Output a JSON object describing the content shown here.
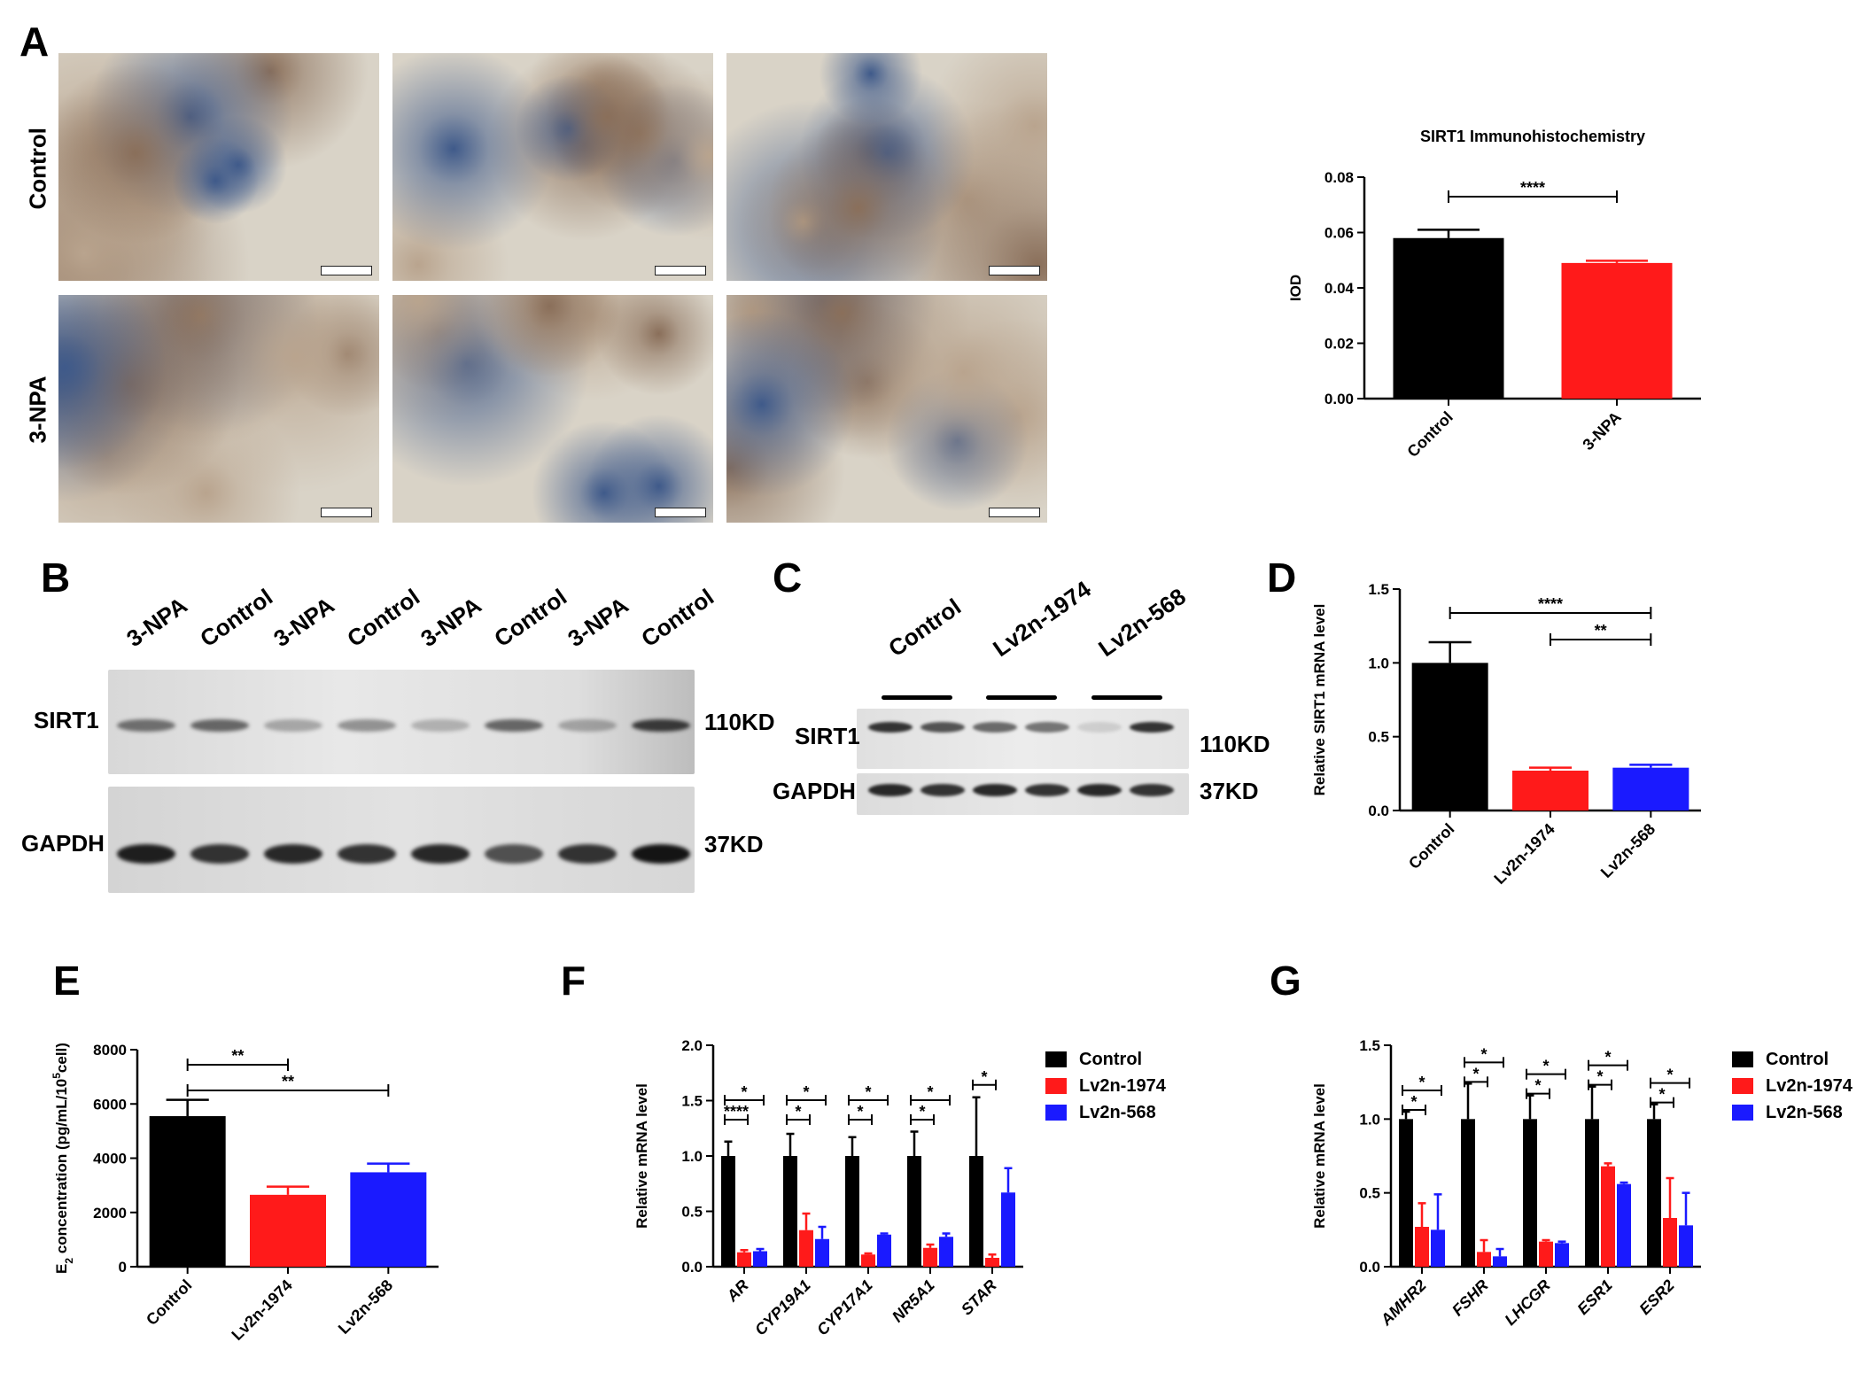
{
  "panels": {
    "A": "A",
    "B": "B",
    "C": "C",
    "D": "D",
    "E": "E",
    "F": "F",
    "G": "G"
  },
  "panel_a": {
    "row_labels": [
      "Control",
      "3-NPA"
    ],
    "tissue_colors": {
      "background": "#d9d3c7",
      "stain": "#8a6f5a",
      "nuclei": "#3f5a8a"
    }
  },
  "panel_b": {
    "lanes": [
      "3-NPA",
      "Control",
      "3-NPA",
      "Control",
      "3-NPA",
      "Control",
      "3-NPA",
      "Control"
    ],
    "row_labels": [
      "SIRT1",
      "GAPDH"
    ],
    "sizes": [
      "110KD",
      "37KD"
    ]
  },
  "panel_c": {
    "groups": [
      "Control",
      "Lv2n-1974",
      "Lv2n-568"
    ],
    "row_labels": [
      "SIRT1",
      "GAPDH"
    ],
    "sizes": [
      "110KD",
      "37KD"
    ]
  },
  "colors": {
    "control": "#000000",
    "lv1974": "#ff1a1a",
    "lv568": "#1a1aff"
  },
  "chart_data": [
    {
      "id": "A",
      "type": "bar",
      "title": "SIRT1 Immunohistochemistry",
      "categories": [
        "Control",
        "3-NPA"
      ],
      "values": [
        0.058,
        0.049
      ],
      "errors": [
        0.003,
        0.0008
      ],
      "ylabel": "IOD",
      "ylim": [
        0,
        0.08
      ],
      "yticks": [
        "0.00",
        "0.02",
        "0.04",
        "0.06",
        "0.08"
      ],
      "significance": [
        {
          "from": 0,
          "to": 1,
          "label": "****"
        }
      ]
    },
    {
      "id": "D",
      "type": "bar",
      "categories": [
        "Control",
        "Lv2n-1974",
        "Lv2n-568"
      ],
      "values": [
        1.0,
        0.27,
        0.29
      ],
      "errors": [
        0.14,
        0.02,
        0.02
      ],
      "ylabel": "Relative SIRT1 mRNA level",
      "ylim": [
        0,
        1.5
      ],
      "yticks": [
        "0.0",
        "0.5",
        "1.0",
        "1.5"
      ],
      "significance": [
        {
          "from": 0,
          "to": 2,
          "label": "****"
        },
        {
          "from": 1,
          "to": 2,
          "label": "**"
        }
      ]
    },
    {
      "id": "E",
      "type": "bar",
      "categories": [
        "Control",
        "Lv2n-1974",
        "Lv2n-568"
      ],
      "values": [
        5550,
        2650,
        3480
      ],
      "errors": [
        600,
        300,
        320
      ],
      "ylabel": "E2 concentration (pg/mL/105cell)",
      "ylim": [
        0,
        8000
      ],
      "yticks": [
        "0",
        "2000",
        "4000",
        "6000",
        "8000"
      ],
      "significance": [
        {
          "from": 0,
          "to": 1,
          "label": "**"
        },
        {
          "from": 0,
          "to": 2,
          "label": "**"
        }
      ]
    },
    {
      "id": "F",
      "type": "bar",
      "categories": [
        "AR",
        "CYP19A1",
        "CYP17A1",
        "NR5A1",
        "STAR"
      ],
      "series": [
        {
          "name": "Control",
          "values": [
            1.0,
            1.0,
            1.0,
            1.0,
            1.0
          ],
          "errors": [
            0.13,
            0.2,
            0.17,
            0.22,
            0.53
          ]
        },
        {
          "name": "Lv2n-1974",
          "values": [
            0.13,
            0.33,
            0.11,
            0.17,
            0.08
          ],
          "errors": [
            0.02,
            0.15,
            0.01,
            0.03,
            0.03
          ]
        },
        {
          "name": "Lv2n-568",
          "values": [
            0.14,
            0.25,
            0.29,
            0.27,
            0.67
          ],
          "errors": [
            0.02,
            0.11,
            0.01,
            0.03,
            0.22
          ]
        }
      ],
      "ylabel": "Relative mRNA level",
      "ylim": [
        0,
        2.0
      ],
      "yticks": [
        "0.0",
        "0.5",
        "1.0",
        "1.5",
        "2.0"
      ],
      "significance": [
        {
          "cat": 0,
          "from": 0,
          "to": 2,
          "label": "*"
        },
        {
          "cat": 0,
          "from": 0,
          "to": 1,
          "label": "****"
        },
        {
          "cat": 1,
          "from": 0,
          "to": 2,
          "label": "*"
        },
        {
          "cat": 1,
          "from": 0,
          "to": 1,
          "label": "*"
        },
        {
          "cat": 2,
          "from": 0,
          "to": 2,
          "label": "*"
        },
        {
          "cat": 2,
          "from": 0,
          "to": 1,
          "label": "*"
        },
        {
          "cat": 3,
          "from": 0,
          "to": 2,
          "label": "*"
        },
        {
          "cat": 3,
          "from": 0,
          "to": 1,
          "label": "*"
        },
        {
          "cat": 4,
          "from": 0,
          "to": 1,
          "label": "*"
        }
      ]
    },
    {
      "id": "G",
      "type": "bar",
      "categories": [
        "AMHR2",
        "FSHR",
        "LHCGR",
        "ESR1",
        "ESR2"
      ],
      "series": [
        {
          "name": "Control",
          "values": [
            1.0,
            1.0,
            1.0,
            1.0,
            1.0
          ],
          "errors": [
            0.05,
            0.24,
            0.16,
            0.22,
            0.1
          ]
        },
        {
          "name": "Lv2n-1974",
          "values": [
            0.27,
            0.1,
            0.17,
            0.68,
            0.33
          ],
          "errors": [
            0.16,
            0.08,
            0.01,
            0.02,
            0.27
          ]
        },
        {
          "name": "Lv2n-568",
          "values": [
            0.25,
            0.07,
            0.16,
            0.56,
            0.28
          ],
          "errors": [
            0.24,
            0.05,
            0.01,
            0.01,
            0.22
          ]
        }
      ],
      "ylabel": "Relative mRNA level",
      "ylim": [
        0,
        1.5
      ],
      "yticks": [
        "0.0",
        "0.5",
        "1.0",
        "1.5"
      ],
      "significance": [
        {
          "cat": 0,
          "from": 0,
          "to": 2,
          "label": "*"
        },
        {
          "cat": 0,
          "from": 0,
          "to": 1,
          "label": "*"
        },
        {
          "cat": 1,
          "from": 0,
          "to": 2,
          "label": "*"
        },
        {
          "cat": 1,
          "from": 0,
          "to": 1,
          "label": "*"
        },
        {
          "cat": 2,
          "from": 0,
          "to": 2,
          "label": "*"
        },
        {
          "cat": 2,
          "from": 0,
          "to": 1,
          "label": "*"
        },
        {
          "cat": 3,
          "from": 0,
          "to": 2,
          "label": "*"
        },
        {
          "cat": 3,
          "from": 0,
          "to": 1,
          "label": "*"
        },
        {
          "cat": 4,
          "from": 0,
          "to": 2,
          "label": "*"
        },
        {
          "cat": 4,
          "from": 0,
          "to": 1,
          "label": "*"
        }
      ]
    }
  ]
}
